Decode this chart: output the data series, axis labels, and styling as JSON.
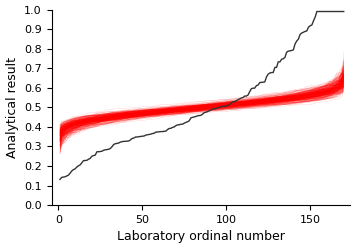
{
  "n_points": 170,
  "n_red_lines": 300,
  "xlim": [
    -4,
    174
  ],
  "ylim": [
    0.0,
    1.0
  ],
  "xticks": [
    0,
    50,
    100,
    150
  ],
  "yticks": [
    0.0,
    0.1,
    0.2,
    0.3,
    0.4,
    0.5,
    0.6,
    0.7,
    0.8,
    0.9,
    1.0
  ],
  "xlabel": "Laboratory ordinal number",
  "ylabel": "Analytical result",
  "black_color": "#333333",
  "red_color": "#ff0000",
  "black_lw": 1.0,
  "red_lw": 0.25,
  "red_alpha": 0.25,
  "fig_width": 3.56,
  "fig_height": 2.49,
  "dpi": 100
}
